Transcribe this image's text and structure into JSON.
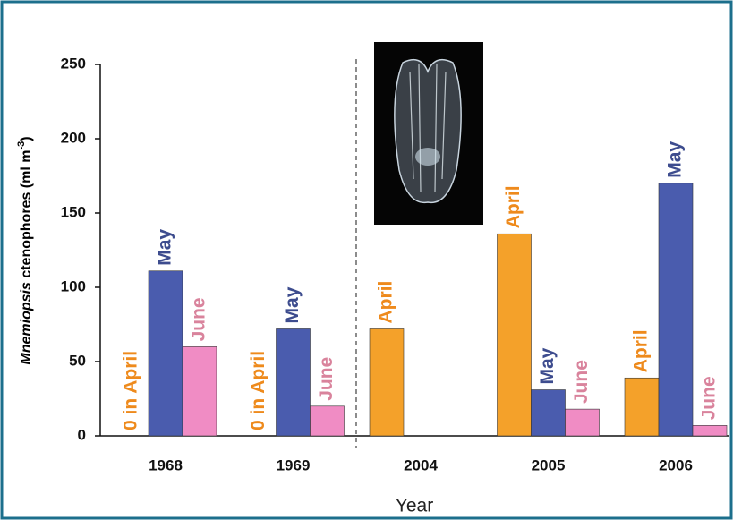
{
  "chart_data": {
    "type": "bar",
    "categories": [
      "1968",
      "1969",
      "2004",
      "2005",
      "2006"
    ],
    "series": [
      {
        "name": "April",
        "color": "#f4a12a",
        "label_color": "#ee8a1c",
        "values": [
          0,
          0,
          72,
          136,
          39
        ],
        "bar_labels": [
          "0 in April",
          "0 in April",
          "April",
          "April",
          "April"
        ]
      },
      {
        "name": "May",
        "color": "#4a5cae",
        "label_color": "#3d4c8e",
        "values": [
          111,
          72,
          null,
          31,
          170
        ],
        "bar_labels": [
          "May",
          "May",
          null,
          "May",
          "May"
        ]
      },
      {
        "name": "June",
        "color": "#f08cc4",
        "label_color": "#d9839c",
        "values": [
          60,
          20,
          null,
          18,
          7
        ],
        "bar_labels": [
          "June",
          "June",
          null,
          "June",
          "June"
        ]
      }
    ],
    "ylim": [
      0,
      250
    ],
    "yticks": [
      0,
      50,
      100,
      150,
      200,
      250
    ],
    "ylabel": [
      "Mnemiopsis",
      " ctenophores (ml m",
      "-3",
      ")"
    ],
    "xlabel": "Year"
  }
}
